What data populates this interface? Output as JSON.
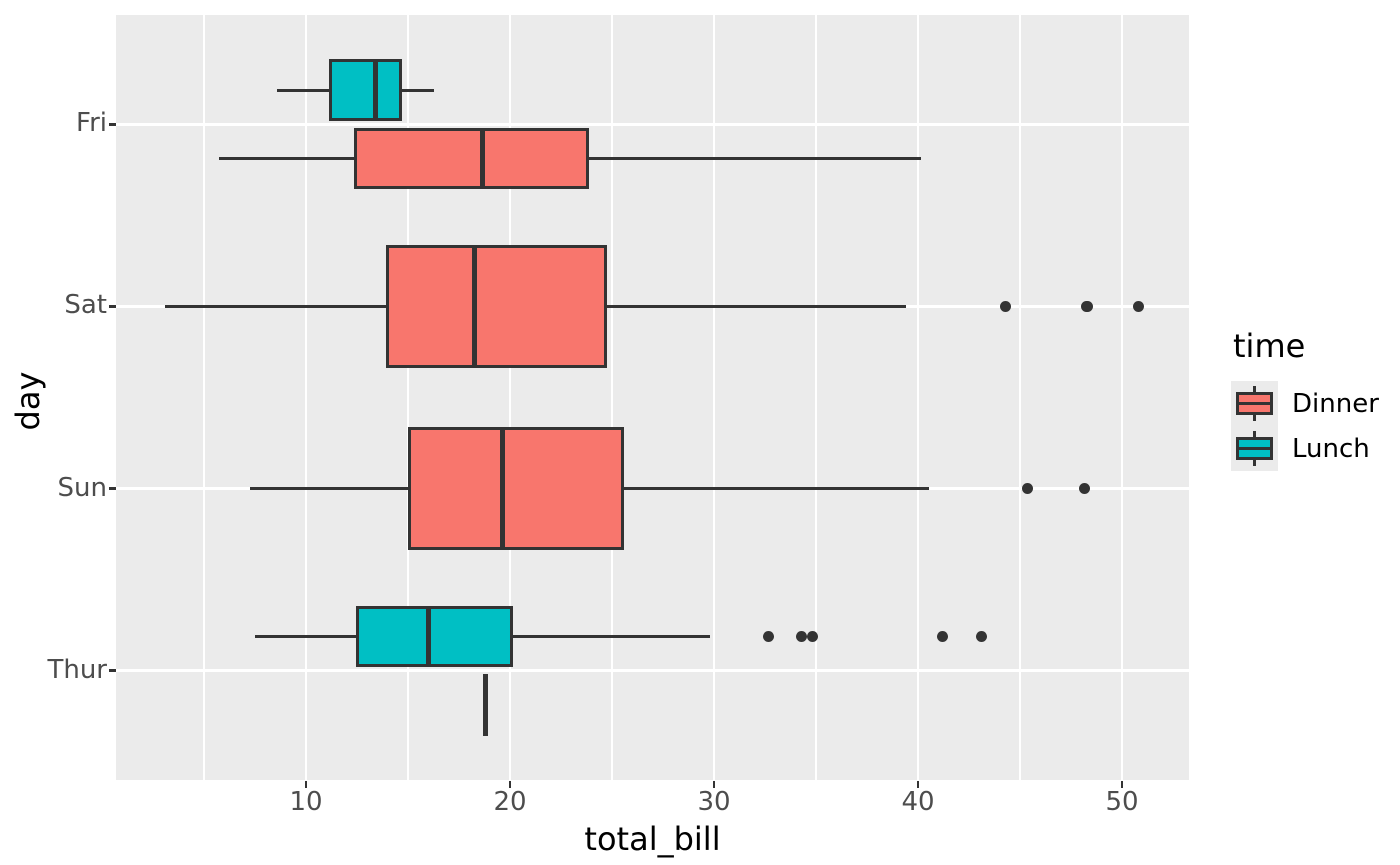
{
  "figure": {
    "background": "#FFFFFF",
    "panel_background": "#EBEBEB",
    "grid_color": "#FFFFFF",
    "box_stroke_color": "#333333",
    "outlier_color": "#333333",
    "tick_label_color": "#4D4D4D"
  },
  "x_axis": {
    "title": "total_bill",
    "tick_values": [
      10,
      20,
      30,
      40,
      50
    ],
    "tick_labels": [
      "10",
      "20",
      "30",
      "40",
      "50"
    ],
    "minor_tick_values": [
      5,
      15,
      25,
      35,
      45
    ],
    "range": [
      0.69,
      53.28
    ]
  },
  "y_axis": {
    "title": "day",
    "categories": [
      "Fri",
      "Sat",
      "Sun",
      "Thur"
    ]
  },
  "legend": {
    "title": "time",
    "entries": [
      {
        "label": "Dinner",
        "color": "#F8766D"
      },
      {
        "label": "Lunch",
        "color": "#00BFC4"
      }
    ]
  },
  "chart_data": {
    "type": "boxplot",
    "orientation": "horizontal",
    "title": "",
    "xlabel": "total_bill",
    "ylabel": "day",
    "xlim": [
      0.69,
      53.28
    ],
    "x_ticks": [
      10,
      20,
      30,
      40,
      50
    ],
    "categories_top_to_bottom": [
      "Fri",
      "Sat",
      "Sun",
      "Thur"
    ],
    "hue": {
      "title": "time",
      "levels": [
        "Dinner",
        "Lunch"
      ],
      "colors": {
        "Dinner": "#F8766D",
        "Lunch": "#00BFC4"
      }
    },
    "grid": true,
    "legend_position": "right",
    "boxes": [
      {
        "day": "Fri",
        "time": "Lunch",
        "whisker_low": 8.58,
        "q1": 11.13,
        "median": 13.42,
        "q3": 14.7,
        "whisker_high": 16.27,
        "outliers": []
      },
      {
        "day": "Fri",
        "time": "Dinner",
        "whisker_low": 5.75,
        "q1": 12.35,
        "median": 18.67,
        "q3": 23.88,
        "whisker_high": 40.17,
        "outliers": []
      },
      {
        "day": "Sat",
        "time": "Dinner",
        "whisker_low": 3.07,
        "q1": 13.91,
        "median": 18.24,
        "q3": 24.74,
        "whisker_high": 39.42,
        "outliers": [
          44.3,
          48.27,
          48.33,
          50.81
        ]
      },
      {
        "day": "Sun",
        "time": "Dinner",
        "whisker_low": 7.25,
        "q1": 14.99,
        "median": 19.63,
        "q3": 25.6,
        "whisker_high": 40.55,
        "outliers": [
          45.35,
          48.17
        ]
      },
      {
        "day": "Thur",
        "time": "Lunch",
        "whisker_low": 7.51,
        "q1": 12.44,
        "median": 16.0,
        "q3": 20.16,
        "whisker_high": 29.8,
        "outliers": [
          32.68,
          34.3,
          34.83,
          41.19,
          43.11
        ]
      },
      {
        "day": "Thur",
        "time": "Dinner",
        "whisker_low": 18.78,
        "q1": 18.78,
        "median": 18.78,
        "q3": 18.78,
        "whisker_high": 18.78,
        "outliers": []
      }
    ]
  }
}
